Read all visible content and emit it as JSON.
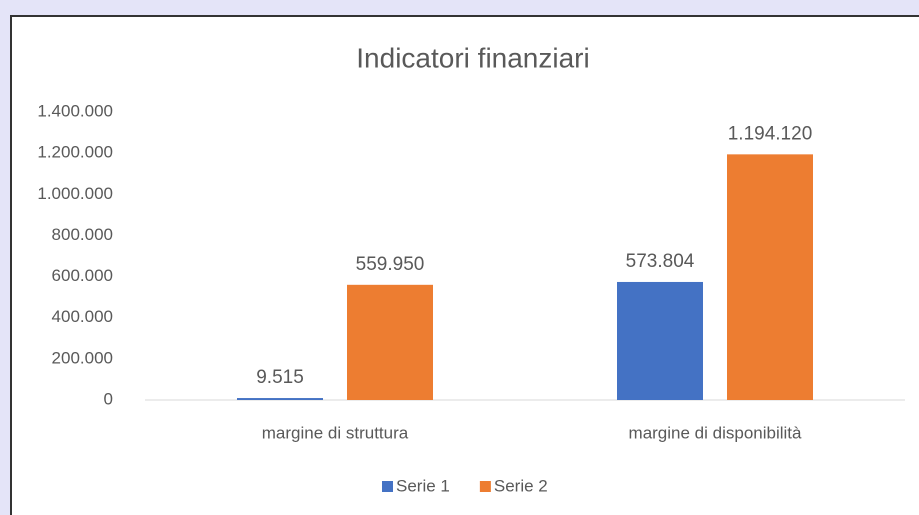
{
  "chart_data": {
    "type": "bar",
    "title": "Indicatori finanziari",
    "categories": [
      "margine di struttura",
      "margine di disponibilità"
    ],
    "series": [
      {
        "name": "Serie 1",
        "color": "#4472c4",
        "values": [
          9515,
          573804
        ],
        "value_labels": [
          "9.515",
          "573.804"
        ]
      },
      {
        "name": "Serie 2",
        "color": "#ed7d31",
        "values": [
          559950,
          1194120
        ],
        "value_labels": [
          "559.950",
          "1.194.120"
        ]
      }
    ],
    "ylim": [
      0,
      1400000
    ],
    "yticks": [
      0,
      {
        "value": 200000,
        "label": "200.000"
      },
      {
        "value": 400000,
        "label": "400.000"
      },
      {
        "value": 600000,
        "label": "600.000"
      },
      {
        "value": 800000,
        "label": "800.000"
      },
      {
        "value": 1000000,
        "label": "1.000.000"
      },
      {
        "value": 1200000,
        "label": "1.200.000"
      },
      {
        "value": 1400000,
        "label": "1.400.000"
      }
    ],
    "grid": false,
    "legend": "bottom"
  }
}
